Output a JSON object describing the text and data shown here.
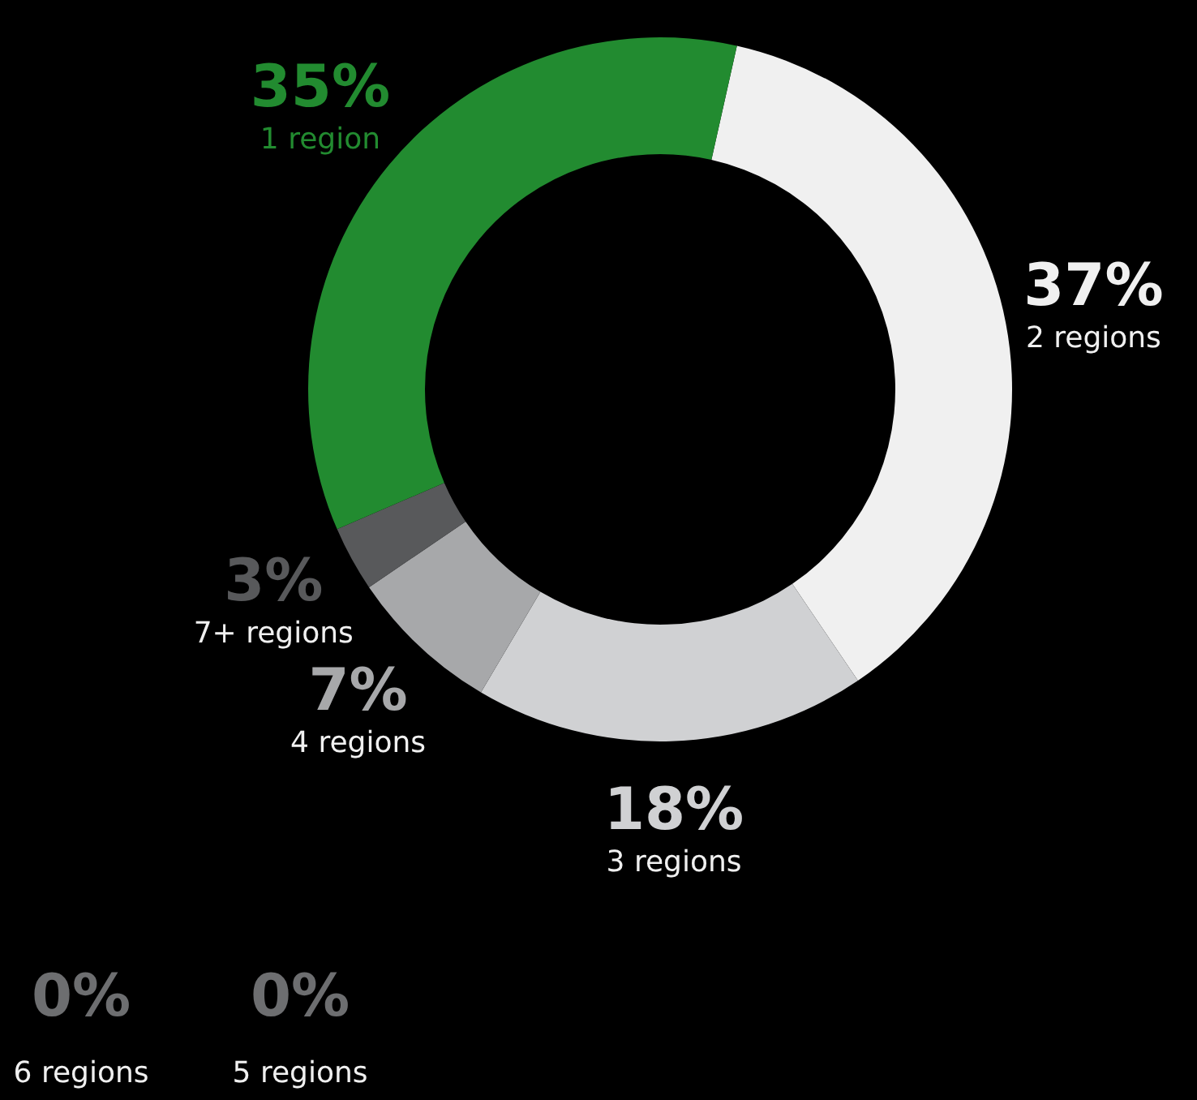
{
  "chart_data": {
    "type": "donut",
    "categories": [
      "2 regions",
      "3 regions",
      "4 regions",
      "7+ regions",
      "1 region",
      "6 regions",
      "5 regions"
    ],
    "values": [
      37,
      18,
      7,
      3,
      35,
      0,
      0
    ],
    "colors": [
      "#f0f0f0",
      "#d0d1d3",
      "#a7a8aa",
      "#58595b",
      "#228b30",
      "#6d6e70",
      "#6d6e70"
    ],
    "value_labels": [
      "37%",
      "18%",
      "7%",
      "3%",
      "35%",
      "0%",
      "0%"
    ]
  }
}
